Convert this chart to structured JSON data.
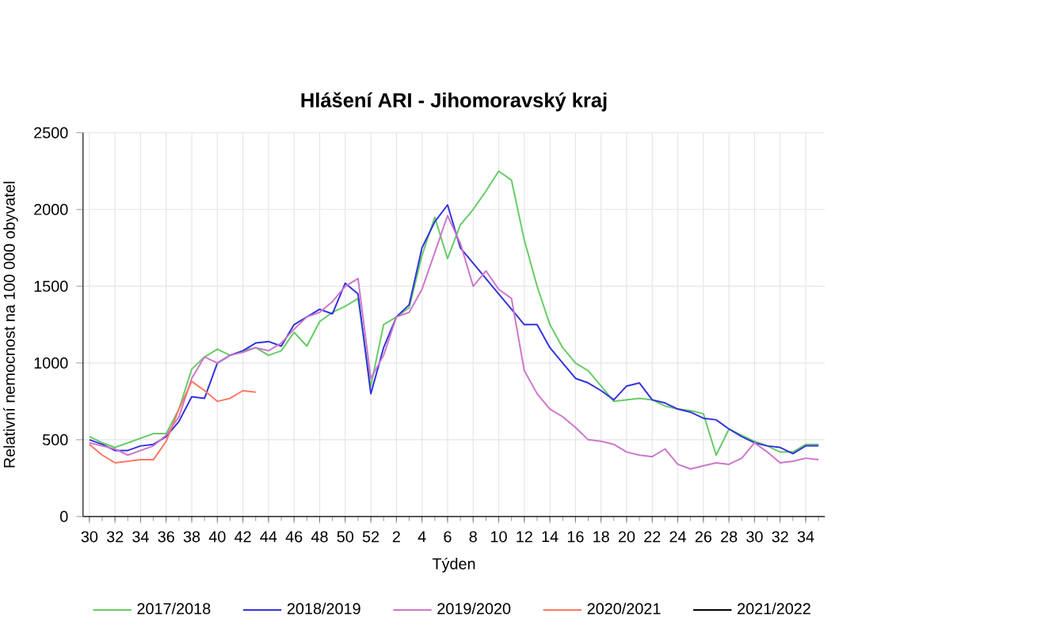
{
  "chart_data": {
    "type": "line",
    "title": "Hlášení ARI  -  Jihomoravský kraj",
    "xlabel": "Týden",
    "ylabel": "Relativní nemocnost na 100 000 obyvatel",
    "categories": [
      "30",
      null,
      "32",
      null,
      "34",
      null,
      "36",
      null,
      "38",
      null,
      "40",
      null,
      "42",
      null,
      "44",
      null,
      "46",
      null,
      "48",
      null,
      "50",
      null,
      "52",
      null,
      "2",
      null,
      "4",
      null,
      "6",
      null,
      "8",
      null,
      "10",
      null,
      "12",
      null,
      "14",
      null,
      "16",
      null,
      "18",
      null,
      "20",
      null,
      "22",
      null,
      "24",
      null,
      "26",
      null,
      "28",
      null,
      "30",
      null,
      "32",
      null,
      "34",
      null
    ],
    "ylim": [
      0,
      2500
    ],
    "yticks": [
      0,
      500,
      1000,
      1500,
      2000,
      2500
    ],
    "grid": true,
    "legend": "bottom",
    "series": [
      {
        "name": "2017/2018",
        "color": "#66cc66",
        "values": [
          520,
          480,
          450,
          480,
          510,
          540,
          540,
          700,
          960,
          1040,
          1090,
          1050,
          1080,
          1100,
          1050,
          1080,
          1200,
          1110,
          1270,
          1330,
          1370,
          1420,
          850,
          1250,
          1300,
          1360,
          1700,
          1950,
          1680,
          1900,
          2000,
          2120,
          2250,
          2190,
          1800,
          1500,
          1250,
          1100,
          1000,
          950,
          850,
          750,
          760,
          770,
          760,
          720,
          700,
          690,
          670,
          400,
          570,
          530,
          490,
          460,
          420,
          420,
          470,
          470
        ]
      },
      {
        "name": "2018/2019",
        "color": "#3333dd",
        "values": [
          500,
          470,
          430,
          430,
          460,
          470,
          520,
          620,
          780,
          770,
          1000,
          1050,
          1080,
          1130,
          1140,
          1110,
          1250,
          1300,
          1350,
          1320,
          1520,
          1450,
          800,
          1100,
          1300,
          1380,
          1750,
          1920,
          2030,
          1750,
          1650,
          1550,
          1450,
          1350,
          1250,
          1250,
          1100,
          1000,
          900,
          870,
          820,
          760,
          850,
          870,
          760,
          740,
          700,
          680,
          640,
          630,
          570,
          520,
          480,
          460,
          450,
          410,
          460,
          460
        ]
      },
      {
        "name": "2019/2020",
        "color": "#cc77cc",
        "values": [
          480,
          460,
          440,
          400,
          430,
          460,
          530,
          650,
          900,
          1040,
          1000,
          1050,
          1070,
          1100,
          1080,
          1130,
          1220,
          1300,
          1330,
          1400,
          1500,
          1550,
          900,
          1050,
          1300,
          1330,
          1480,
          1720,
          1960,
          1780,
          1500,
          1600,
          1480,
          1420,
          950,
          800,
          700,
          650,
          580,
          500,
          490,
          470,
          420,
          400,
          390,
          440,
          340,
          310,
          330,
          350,
          340,
          380,
          480,
          420,
          350,
          360,
          380,
          370
        ]
      },
      {
        "name": "2020/2021",
        "color": "#ff7766",
        "values": [
          470,
          400,
          350,
          360,
          370,
          370,
          490,
          700,
          880,
          820,
          750,
          770,
          820,
          810,
          null,
          null,
          null,
          null,
          null,
          null,
          null,
          null,
          null,
          null,
          null,
          null,
          null,
          null,
          null,
          null,
          null,
          null,
          null,
          null,
          null,
          null,
          null,
          null,
          null,
          null,
          null,
          null,
          null,
          null,
          null,
          null,
          null,
          null,
          null,
          null,
          null,
          null,
          null,
          null,
          null,
          null,
          null,
          null
        ]
      },
      {
        "name": "2021/2022",
        "color": "#000000",
        "values": [
          null,
          null,
          null,
          null,
          null,
          null,
          null,
          null,
          null,
          null,
          null,
          null,
          null,
          null,
          null,
          null,
          null,
          null,
          null,
          null,
          null,
          null,
          null,
          null,
          null,
          null,
          null,
          null,
          null,
          null,
          null,
          null,
          null,
          null,
          null,
          null,
          null,
          null,
          null,
          null,
          null,
          null,
          null,
          null,
          null,
          null,
          null,
          null,
          null,
          null,
          null,
          null,
          null,
          null,
          null,
          null,
          null,
          null
        ]
      }
    ]
  }
}
